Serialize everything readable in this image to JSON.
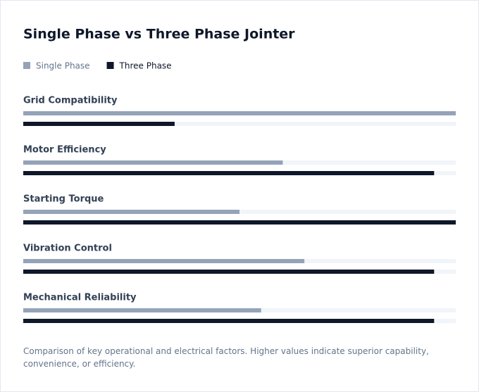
{
  "chart_data": {
    "type": "bar",
    "orientation": "horizontal",
    "title": "Single Phase vs Three Phase Jointer",
    "categories": [
      "Grid Compatibility",
      "Motor Efficiency",
      "Starting Torque",
      "Vibration Control",
      "Mechanical Reliability"
    ],
    "series": [
      {
        "name": "Single Phase",
        "color": "#94a3b8",
        "values": [
          100,
          60,
          50,
          65,
          55
        ]
      },
      {
        "name": "Three Phase",
        "color": "#0f172a",
        "values": [
          35,
          95,
          100,
          95,
          95
        ]
      }
    ],
    "xlim": [
      0,
      100
    ],
    "caption": "Comparison of key operational and electrical factors. Higher values indicate superior capability, convenience, or efficiency."
  }
}
